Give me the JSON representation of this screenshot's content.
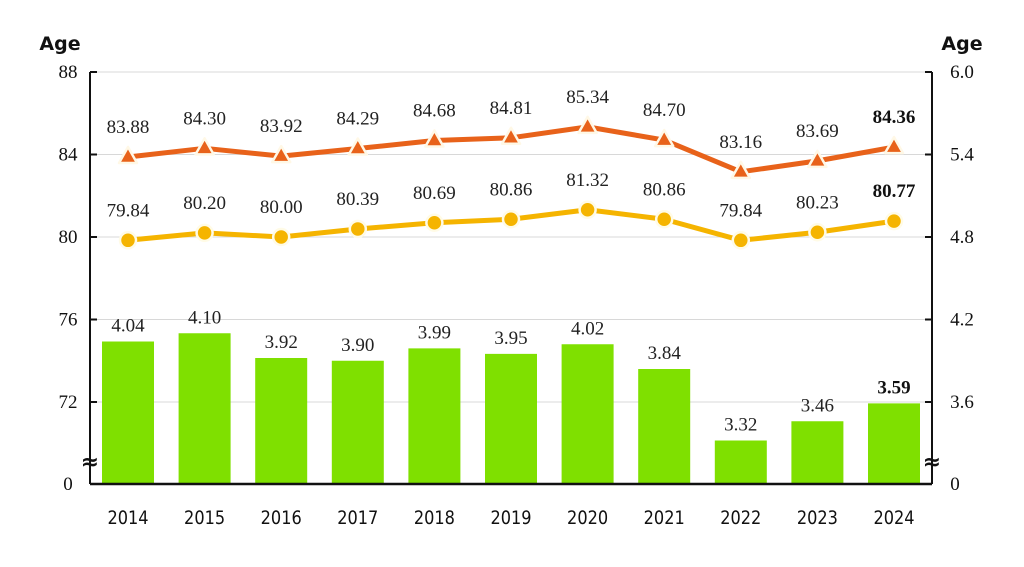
{
  "chart_data": {
    "type": "bar+line",
    "title": "",
    "categories": [
      "2014",
      "2015",
      "2016",
      "2017",
      "2018",
      "2019",
      "2020",
      "2021",
      "2022",
      "2023",
      "2024"
    ],
    "left_axis": {
      "label": "Age",
      "ticks": [
        "88",
        "84",
        "80",
        "76",
        "72",
        "0"
      ],
      "range": [
        72,
        88
      ],
      "break_to_zero": true
    },
    "right_axis": {
      "label": "Age",
      "ticks": [
        "6.0",
        "5.4",
        "4.8",
        "4.2",
        "3.6",
        "0"
      ],
      "range": [
        3.6,
        6.0
      ],
      "break_to_zero": true
    },
    "grid": true,
    "series": [
      {
        "name": "series-triangle-line",
        "type": "line",
        "axis": "left",
        "marker": "triangle",
        "color": "#e8621a",
        "values": [
          83.88,
          84.3,
          83.92,
          84.29,
          84.68,
          84.81,
          85.34,
          84.7,
          83.16,
          83.69,
          84.36
        ],
        "labels": [
          "83.88",
          "84.30",
          "83.92",
          "84.29",
          "84.68",
          "84.81",
          "85.34",
          "84.70",
          "83.16",
          "83.69",
          "84.36"
        ]
      },
      {
        "name": "series-circle-line",
        "type": "line",
        "axis": "left",
        "marker": "circle",
        "color": "#f5b400",
        "values": [
          79.84,
          80.2,
          80.0,
          80.39,
          80.69,
          80.86,
          81.32,
          80.86,
          79.84,
          80.23,
          80.77
        ],
        "labels": [
          "79.84",
          "80.20",
          "80.00",
          "80.39",
          "80.69",
          "80.86",
          "81.32",
          "80.86",
          "79.84",
          "80.23",
          "80.77"
        ]
      },
      {
        "name": "series-bars",
        "type": "bar",
        "axis": "right",
        "color": "#7fe000",
        "values": [
          4.04,
          4.1,
          3.92,
          3.9,
          3.99,
          3.95,
          4.02,
          3.84,
          3.32,
          3.46,
          3.59
        ],
        "labels": [
          "4.04",
          "4.10",
          "3.92",
          "3.90",
          "3.99",
          "3.95",
          "4.02",
          "3.84",
          "3.32",
          "3.46",
          "3.59"
        ]
      }
    ],
    "last_point_labels_bold": true,
    "break_symbol": "≈"
  }
}
